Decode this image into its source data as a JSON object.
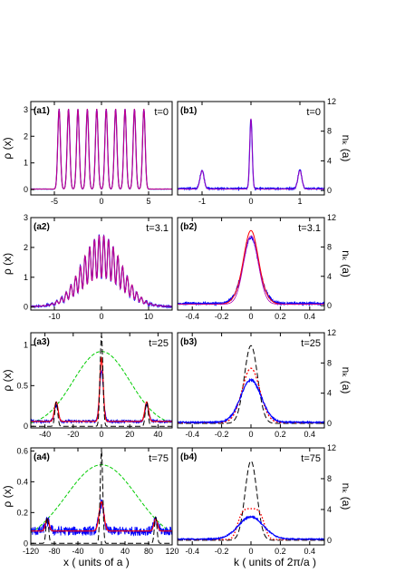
{
  "figure": {
    "x_label_left": "x  ( units of a )",
    "x_label_right": "k  ( units of 2π/a )",
    "y_label_left": "ρ (x)",
    "y_label_right": "nₖ (a)"
  },
  "chart_data": [
    {
      "id": "a1",
      "type": "line",
      "label": "(a1)",
      "time": "t=0",
      "xlim": [
        -7.5,
        7.5
      ],
      "ylim": [
        -0.2,
        3.3
      ],
      "xticks": [
        -5,
        0,
        5
      ],
      "yticks": [
        0,
        1,
        2,
        3
      ],
      "generator": "density_peaks",
      "params": {
        "centers": [
          -4.5,
          -3.5,
          -2.5,
          -1.5,
          -0.5,
          0.5,
          1.5,
          2.5,
          3.5,
          4.5
        ],
        "height": 3.0,
        "width": 0.14,
        "base": 0.02
      },
      "series": [
        {
          "color": "#0000ff",
          "dash": "",
          "width": 1.2,
          "noise": 0.01
        },
        {
          "color": "#ff0000",
          "dash": "",
          "width": 1.0,
          "noise": 0
        },
        {
          "color": "#b000b0",
          "dash": "",
          "width": 0.8,
          "noise": 0
        }
      ]
    },
    {
      "id": "b1",
      "type": "line",
      "label": "(b1)",
      "time": "t=0",
      "xlim": [
        -1.5,
        1.5
      ],
      "ylim": [
        -0.6,
        12
      ],
      "xticks": [
        -1,
        0,
        1
      ],
      "yticks": [
        0,
        4,
        8,
        12
      ],
      "generator": "peaks",
      "series": [
        {
          "color": "#0000ff",
          "dash": "",
          "width": 1.2,
          "noise": 0.15,
          "base": 0.25,
          "peaks": [
            {
              "c": 0,
              "h": 9.5,
              "w": 0.025
            },
            {
              "c": -1,
              "h": 2.5,
              "w": 0.04
            },
            {
              "c": 1,
              "h": 2.5,
              "w": 0.04
            }
          ]
        },
        {
          "color": "#b000b0",
          "dash": "",
          "width": 0.8,
          "noise": 0,
          "base": 0.2,
          "peaks": [
            {
              "c": 0,
              "h": 9.5,
              "w": 0.025
            },
            {
              "c": -1,
              "h": 2.5,
              "w": 0.04
            },
            {
              "c": 1,
              "h": 2.5,
              "w": 0.04
            }
          ]
        }
      ]
    },
    {
      "id": "a2",
      "type": "line",
      "label": "(a2)",
      "time": "t=3.1",
      "xlim": [
        -15,
        15
      ],
      "ylim": [
        -0.1,
        3.0
      ],
      "xticks": [
        -10,
        0,
        10
      ],
      "yticks": [
        0,
        1,
        2,
        3
      ],
      "generator": "oscillating",
      "params": {
        "amp": 2.4,
        "width": 4.2,
        "period": 1.0,
        "mod": 0.6
      },
      "series": [
        {
          "color": "#0000ff",
          "dash": "",
          "width": 1.2,
          "noise": 0.04
        },
        {
          "color": "#ff0000",
          "dash": "",
          "width": 1.0,
          "noise": 0
        },
        {
          "color": "#b000b0",
          "dash": "",
          "width": 0.8,
          "noise": 0
        }
      ]
    },
    {
      "id": "b2",
      "type": "line",
      "label": "(b2)",
      "time": "t=3.1",
      "xlim": [
        -0.5,
        0.5
      ],
      "ylim": [
        -0.6,
        12
      ],
      "xticks": [
        -0.4,
        -0.2,
        0,
        0.2,
        0.4
      ],
      "yticks": [
        0,
        4,
        8,
        12
      ],
      "generator": "peaks",
      "series": [
        {
          "color": "#0000ff",
          "dash": "",
          "width": 1.2,
          "noise": 0.2,
          "base": 0.3,
          "peaks": [
            {
              "c": 0,
              "h": 9.0,
              "w": 0.05
            },
            {
              "c": -0.1,
              "h": 0.6,
              "w": 0.04
            },
            {
              "c": 0.1,
              "h": 0.6,
              "w": 0.04
            }
          ]
        },
        {
          "color": "#ff0000",
          "dash": "",
          "width": 1.0,
          "noise": 0,
          "base": 0.2,
          "peaks": [
            {
              "c": 0,
              "h": 10.0,
              "w": 0.05
            },
            {
              "c": -0.1,
              "h": 0.5,
              "w": 0.04
            },
            {
              "c": 0.1,
              "h": 0.5,
              "w": 0.04
            }
          ]
        },
        {
          "color": "#b000b0",
          "dash": "",
          "width": 0.8,
          "noise": 0,
          "base": 0.2,
          "peaks": [
            {
              "c": 0,
              "h": 9.3,
              "w": 0.05
            }
          ]
        }
      ]
    },
    {
      "id": "a3",
      "type": "line",
      "label": "(a3)",
      "time": "t=25",
      "xlim": [
        -50,
        50
      ],
      "ylim": [
        -0.02,
        1.15
      ],
      "xticks": [
        -40,
        -20,
        0,
        20,
        40
      ],
      "yticks": [
        0,
        0.5,
        1
      ],
      "generator": "peaks",
      "series": [
        {
          "color": "#00cc00",
          "dash": "4,2",
          "width": 1.0,
          "noise": 0,
          "base": 0,
          "peaks": [
            {
              "c": 0,
              "h": 0.92,
              "w": 20
            }
          ]
        },
        {
          "color": "#0000ff",
          "dash": "",
          "width": 1.0,
          "noise": 0.025,
          "base": 0.06,
          "peaks": [
            {
              "c": 0,
              "h": 0.62,
              "w": 1.4
            },
            {
              "c": -32,
              "h": 0.2,
              "w": 1.4
            },
            {
              "c": 32,
              "h": 0.2,
              "w": 1.4
            }
          ]
        },
        {
          "color": "#ff0000",
          "dash": "",
          "width": 1.2,
          "noise": 0,
          "base": 0.06,
          "peaks": [
            {
              "c": 0,
              "h": 0.78,
              "w": 1.2
            },
            {
              "c": -32,
              "h": 0.24,
              "w": 1.3
            },
            {
              "c": 32,
              "h": 0.24,
              "w": 1.3
            }
          ]
        },
        {
          "color": "#000000",
          "dash": "6,3",
          "width": 1.0,
          "noise": 0,
          "base": 0.0,
          "peaks": [
            {
              "c": 0,
              "h": 1.12,
              "w": 1.0
            },
            {
              "c": -32,
              "h": 0.3,
              "w": 1.0
            },
            {
              "c": 32,
              "h": 0.3,
              "w": 1.0
            }
          ]
        }
      ]
    },
    {
      "id": "b3",
      "type": "line",
      "label": "(b3)",
      "time": "t=25",
      "xlim": [
        -0.5,
        0.5
      ],
      "ylim": [
        -0.6,
        12
      ],
      "xticks": [
        -0.4,
        -0.2,
        0,
        0.2,
        0.4
      ],
      "yticks": [
        0,
        4,
        8,
        12
      ],
      "generator": "peaks",
      "series": [
        {
          "color": "#000000",
          "dash": "6,3",
          "width": 1.0,
          "noise": 0,
          "base": 0,
          "peaks": [
            {
              "c": 0,
              "h": 10.3,
              "w": 0.045
            }
          ]
        },
        {
          "color": "#ff0000",
          "dash": "2,2",
          "width": 1.3,
          "noise": 0,
          "base": 0.1,
          "peaks": [
            {
              "c": 0,
              "h": 7.2,
              "w": 0.06
            }
          ]
        },
        {
          "color": "#0000ff",
          "dash": "",
          "width": 1.2,
          "noise": 0.12,
          "base": 0.15,
          "peaks": [
            {
              "c": 0,
              "h": 5.6,
              "w": 0.07
            }
          ]
        }
      ]
    },
    {
      "id": "a4",
      "type": "line",
      "label": "(a4)",
      "time": "t=75",
      "xlim": [
        -120,
        120
      ],
      "ylim": [
        -0.01,
        0.62
      ],
      "xticks": [
        -120,
        -80,
        -40,
        0,
        40,
        80,
        120
      ],
      "yticks": [
        0,
        0.2,
        0.4,
        0.6
      ],
      "generator": "peaks",
      "series": [
        {
          "color": "#00cc00",
          "dash": "4,2",
          "width": 1.0,
          "noise": 0,
          "base": 0,
          "peaks": [
            {
              "c": 0,
              "h": 0.51,
              "w": 60
            }
          ]
        },
        {
          "color": "#0000ff",
          "dash": "",
          "width": 0.9,
          "noise": 0.035,
          "base": 0.08,
          "peaks": [
            {
              "c": 0,
              "h": 0.18,
              "w": 4
            },
            {
              "c": -92,
              "h": 0.06,
              "w": 4
            },
            {
              "c": 92,
              "h": 0.06,
              "w": 4
            }
          ]
        },
        {
          "color": "#ff0000",
          "dash": "",
          "width": 1.2,
          "noise": 0,
          "base": 0.08,
          "peaks": [
            {
              "c": 0,
              "h": 0.19,
              "w": 4
            },
            {
              "c": -92,
              "h": 0.08,
              "w": 3
            },
            {
              "c": 92,
              "h": 0.08,
              "w": 3
            }
          ]
        },
        {
          "color": "#000000",
          "dash": "6,3",
          "width": 1.0,
          "noise": 0,
          "base": 0,
          "peaks": [
            {
              "c": 0,
              "h": 0.6,
              "w": 2.2
            },
            {
              "c": -92,
              "h": 0.17,
              "w": 2.2
            },
            {
              "c": 92,
              "h": 0.17,
              "w": 2.2
            }
          ]
        }
      ]
    },
    {
      "id": "b4",
      "type": "line",
      "label": "(b4)",
      "time": "t=75",
      "xlim": [
        -0.5,
        0.5
      ],
      "ylim": [
        -0.6,
        12
      ],
      "xticks": [
        -0.4,
        -0.2,
        0,
        0.2,
        0.4
      ],
      "yticks": [
        0,
        4,
        8,
        12
      ],
      "generator": "peaks",
      "series": [
        {
          "color": "#000000",
          "dash": "6,3",
          "width": 1.0,
          "noise": 0,
          "base": 0,
          "peaks": [
            {
              "c": 0,
              "h": 10.3,
              "w": 0.04
            }
          ]
        },
        {
          "color": "#ff0000",
          "dash": "1.5,2",
          "width": 1.4,
          "noise": 0,
          "base": 0.1,
          "plateau": true,
          "peaks": [
            {
              "c": 0,
              "h": 4.0,
              "w": 0.1
            }
          ]
        },
        {
          "color": "#0000ff",
          "dash": "",
          "width": 1.2,
          "noise": 0.1,
          "base": 0.15,
          "peaks": [
            {
              "c": 0,
              "h": 2.9,
              "w": 0.085
            }
          ]
        }
      ]
    }
  ]
}
